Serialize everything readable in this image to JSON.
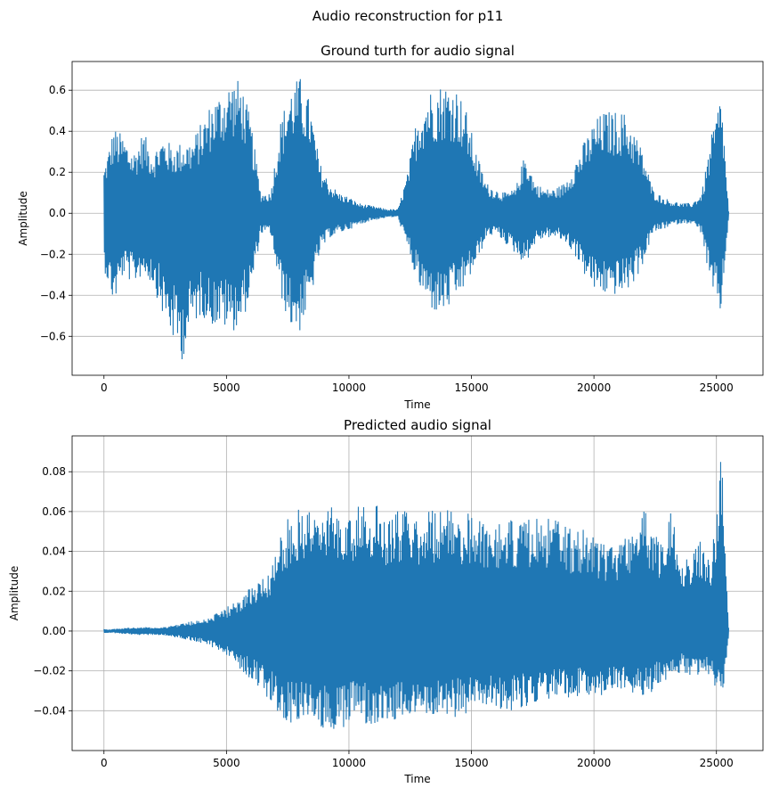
{
  "figure": {
    "suptitle": "Audio reconstruction for p11"
  },
  "chart_data": [
    {
      "type": "line",
      "title": "Ground turth for audio signal",
      "xlabel": "Time",
      "ylabel": "Amplitude",
      "xlim": [
        -1300,
        26900
      ],
      "ylim": [
        -0.79,
        0.74
      ],
      "xticks": [
        0,
        5000,
        10000,
        15000,
        20000,
        25000
      ],
      "yticks": [
        -0.6,
        -0.4,
        -0.2,
        0.0,
        0.2,
        0.4,
        0.6
      ],
      "yticklabels": [
        "−0.6",
        "−0.4",
        "−0.2",
        "0.0",
        "0.2",
        "0.4",
        "0.6"
      ],
      "grid": "y",
      "color": "#1f77b4",
      "series": [
        {
          "x": [
            0,
            400,
            800,
            1200,
            1600,
            2000,
            2400,
            2800,
            3200,
            3600,
            4000,
            4400,
            4800,
            5200,
            5600,
            6000,
            6400,
            6800,
            7200,
            7600,
            8000,
            8400,
            8800,
            9200,
            9600,
            10000,
            10400,
            10800,
            11200,
            11600,
            12000,
            12400,
            12800,
            13200,
            13600,
            14000,
            14400,
            14800,
            15200,
            15600,
            16000,
            16400,
            16800,
            17200,
            17600,
            18000,
            18400,
            18800,
            19200,
            19600,
            20000,
            20400,
            20800,
            21200,
            21600,
            22000,
            22400,
            22800,
            23200,
            23600,
            24000,
            24400,
            24800,
            25200,
            25500
          ],
          "upper": [
            0.22,
            0.42,
            0.38,
            0.3,
            0.4,
            0.3,
            0.38,
            0.33,
            0.35,
            0.36,
            0.45,
            0.55,
            0.6,
            0.66,
            0.65,
            0.45,
            0.1,
            0.1,
            0.45,
            0.62,
            0.67,
            0.55,
            0.25,
            0.15,
            0.1,
            0.08,
            0.05,
            0.04,
            0.03,
            0.02,
            0.02,
            0.2,
            0.5,
            0.6,
            0.63,
            0.64,
            0.62,
            0.5,
            0.3,
            0.15,
            0.12,
            0.1,
            0.12,
            0.3,
            0.15,
            0.12,
            0.12,
            0.15,
            0.25,
            0.35,
            0.45,
            0.5,
            0.5,
            0.5,
            0.42,
            0.3,
            0.12,
            0.08,
            0.06,
            0.05,
            0.05,
            0.1,
            0.38,
            0.6,
            0.01
          ],
          "lower": [
            -0.27,
            -0.45,
            -0.3,
            -0.35,
            -0.3,
            -0.35,
            -0.5,
            -0.62,
            -0.72,
            -0.55,
            -0.5,
            -0.55,
            -0.56,
            -0.58,
            -0.55,
            -0.4,
            -0.1,
            -0.1,
            -0.4,
            -0.56,
            -0.58,
            -0.45,
            -0.2,
            -0.12,
            -0.1,
            -0.08,
            -0.06,
            -0.04,
            -0.03,
            -0.02,
            -0.02,
            -0.18,
            -0.35,
            -0.45,
            -0.5,
            -0.48,
            -0.42,
            -0.35,
            -0.25,
            -0.12,
            -0.1,
            -0.15,
            -0.2,
            -0.25,
            -0.15,
            -0.12,
            -0.12,
            -0.14,
            -0.2,
            -0.3,
            -0.38,
            -0.4,
            -0.4,
            -0.4,
            -0.35,
            -0.25,
            -0.1,
            -0.08,
            -0.06,
            -0.05,
            -0.05,
            -0.1,
            -0.4,
            -0.5,
            -0.01
          ]
        }
      ]
    },
    {
      "type": "line",
      "title": "Predicted audio signal",
      "xlabel": "Time",
      "ylabel": "Amplitude",
      "xlim": [
        -1300,
        26900
      ],
      "ylim": [
        -0.06,
        0.098
      ],
      "xticks": [
        0,
        5000,
        10000,
        15000,
        20000,
        25000
      ],
      "yticks": [
        -0.04,
        -0.02,
        0.0,
        0.02,
        0.04,
        0.06,
        0.08
      ],
      "yticklabels": [
        "−0.04",
        "−0.02",
        "0.00",
        "0.02",
        "0.04",
        "0.06",
        "0.08"
      ],
      "grid": "both",
      "color": "#1f77b4",
      "series": [
        {
          "x": [
            0,
            400,
            800,
            1200,
            1600,
            2000,
            2400,
            2800,
            3200,
            3600,
            4000,
            4400,
            4800,
            5200,
            5600,
            6000,
            6400,
            6800,
            7200,
            7600,
            8000,
            8400,
            8800,
            9200,
            9600,
            10000,
            10400,
            10800,
            11200,
            11600,
            12000,
            12400,
            12800,
            13200,
            13600,
            14000,
            14400,
            14800,
            15200,
            15600,
            16000,
            16400,
            16800,
            17200,
            17600,
            18000,
            18400,
            18800,
            19200,
            19600,
            20000,
            20400,
            20800,
            21200,
            21600,
            22000,
            22400,
            22800,
            23200,
            23600,
            24000,
            24400,
            24800,
            25200,
            25500
          ],
          "upper": [
            0.001,
            0.001,
            0.0015,
            0.002,
            0.002,
            0.002,
            0.002,
            0.003,
            0.004,
            0.005,
            0.006,
            0.008,
            0.01,
            0.014,
            0.018,
            0.022,
            0.028,
            0.032,
            0.052,
            0.058,
            0.064,
            0.064,
            0.06,
            0.063,
            0.06,
            0.064,
            0.063,
            0.063,
            0.064,
            0.058,
            0.062,
            0.061,
            0.06,
            0.062,
            0.062,
            0.061,
            0.06,
            0.06,
            0.058,
            0.057,
            0.057,
            0.058,
            0.055,
            0.055,
            0.058,
            0.056,
            0.058,
            0.054,
            0.05,
            0.052,
            0.05,
            0.045,
            0.045,
            0.048,
            0.055,
            0.066,
            0.05,
            0.045,
            0.065,
            0.04,
            0.042,
            0.048,
            0.035,
            0.091,
            0.002
          ],
          "lower": [
            -0.001,
            -0.001,
            -0.0015,
            -0.002,
            -0.002,
            -0.002,
            -0.002,
            -0.003,
            -0.004,
            -0.005,
            -0.006,
            -0.008,
            -0.01,
            -0.014,
            -0.02,
            -0.024,
            -0.03,
            -0.035,
            -0.044,
            -0.046,
            -0.045,
            -0.046,
            -0.048,
            -0.05,
            -0.052,
            -0.046,
            -0.045,
            -0.047,
            -0.046,
            -0.045,
            -0.046,
            -0.045,
            -0.045,
            -0.044,
            -0.045,
            -0.044,
            -0.043,
            -0.042,
            -0.04,
            -0.039,
            -0.038,
            -0.04,
            -0.04,
            -0.038,
            -0.036,
            -0.036,
            -0.035,
            -0.034,
            -0.034,
            -0.032,
            -0.033,
            -0.032,
            -0.032,
            -0.032,
            -0.032,
            -0.035,
            -0.03,
            -0.025,
            -0.025,
            -0.02,
            -0.025,
            -0.02,
            -0.024,
            -0.04,
            -0.002
          ]
        }
      ]
    }
  ]
}
